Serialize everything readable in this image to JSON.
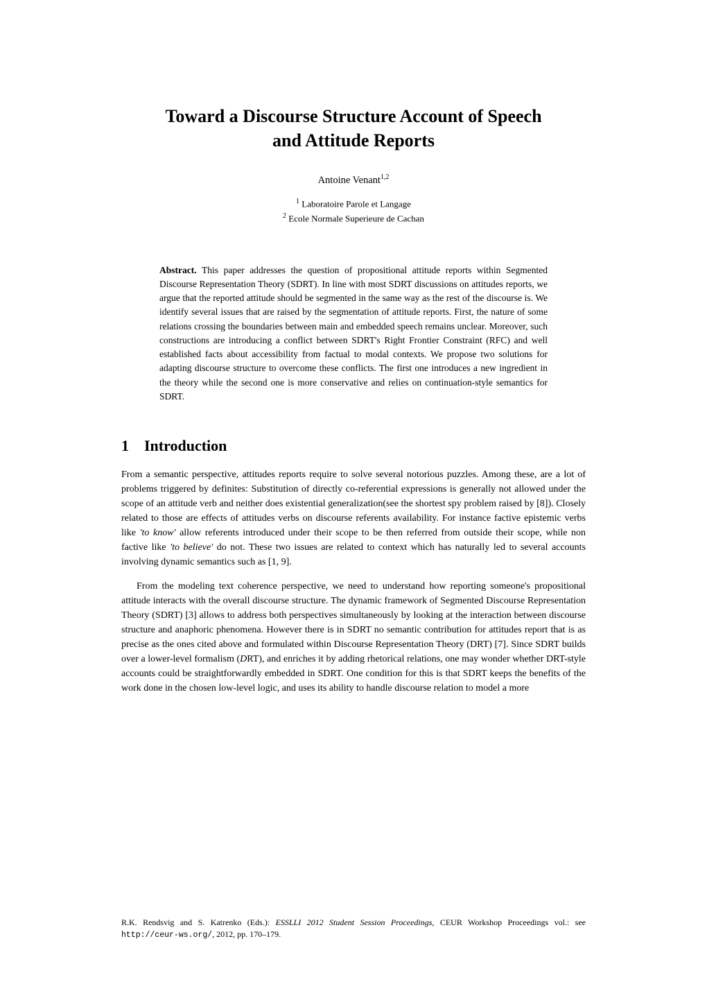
{
  "title_line1": "Toward a Discourse Structure Account of Speech",
  "title_line2": "and Attitude Reports",
  "author_name": "Antoine Venant",
  "author_sup": "1,2",
  "affil1_sup": "1",
  "affil1_text": " Laboratoire Parole et Langage",
  "affil2_sup": "2",
  "affil2_text": " Ecole Normale Superieure de Cachan",
  "abstract_label": "Abstract.",
  "abstract_text": " This paper addresses the question of propositional attitude reports within Segmented Discourse Representation Theory (SDRT). In line with most SDRT discussions on attitudes reports, we argue that the reported attitude should be segmented in the same way as the rest of the discourse is. We identify several issues that are raised by the segmentation of attitude reports. First, the nature of some relations crossing the boundaries between main and embedded speech remains unclear. Moreover, such constructions are introducing a conflict between SDRT's Right Frontier Constraint (RFC) and well established facts about accessibility from factual to modal contexts. We propose two solutions for adapting discourse structure to overcome these conflicts. The first one introduces a new ingredient in the theory while the second one is more conservative and relies on continuation-style semantics for SDRT.",
  "section_number": "1",
  "section_title": "Introduction",
  "para1_a": "From a semantic perspective, attitudes reports require to solve several notorious puzzles. Among these, are a lot of problems triggered by definites: Substitution of directly co-referential expressions is generally not allowed under the scope of an attitude verb and neither does existential generalization(see the shortest spy problem raised by [8]). Closely related to those are effects of attitudes verbs on discourse referents availability. For instance factive epistemic verbs like ",
  "para1_it1": "'to know'",
  "para1_b": " allow referents introduced under their scope to be then referred from outside their scope, while non factive like ",
  "para1_it2": "'to believe'",
  "para1_c": " do not. These two issues are related to context which has naturally led to several accounts involving dynamic semantics such as [1, 9].",
  "para2_a": "From the modeling text coherence perspective, we need to understand how reporting someone's propositional attitude interacts with the overall discourse structure. The dynamic framework of Segmented Discourse Representation Theory (SDRT) [3] allows to address both perspectives simultaneously by looking at the interaction between discourse structure and anaphoric phenomena. However there is in SDRT no semantic contribution for attitudes report that is as precise as the ones cited above and formulated within Discourse Representation Theory (DRT) [7]. Since SDRT builds over a lower-level formalism (",
  "para2_it1": "D",
  "para2_b": "RT), and enriches it by adding rhetorical relations, one may wonder whether DRT-style accounts could be straightforwardly embedded in SDRT. One condition for this is that SDRT keeps the benefits of the work done in the chosen low-level logic, and uses its ability to handle discourse relation to model a more",
  "footer_a": "R.K. Rendsvig and S. Katrenko (Eds.): ",
  "footer_it": "ESSLLI 2012 Student Session Proceedings",
  "footer_b": ", CEUR Workshop Proceedings vol.: see ",
  "footer_mono": "http://ceur-ws.org/",
  "footer_c": ", 2012, pp. 170–179."
}
